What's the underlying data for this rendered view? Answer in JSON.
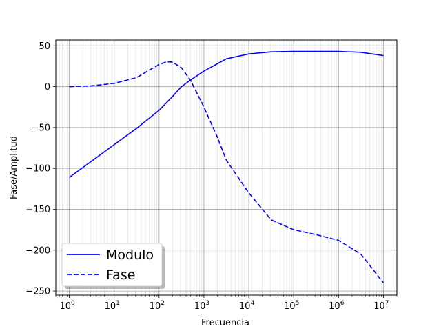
{
  "chart_data": {
    "type": "line",
    "title": "",
    "xlabel": "Frecuencia",
    "ylabel": "Fase/Amplitud",
    "xscale": "log",
    "xlim": [
      0.5,
      20000000
    ],
    "ylim": [
      -255,
      57
    ],
    "x_ticks": [
      {
        "value": 1,
        "base": "10",
        "exp": "0"
      },
      {
        "value": 10,
        "base": "10",
        "exp": "1"
      },
      {
        "value": 100,
        "base": "10",
        "exp": "2"
      },
      {
        "value": 1000,
        "base": "10",
        "exp": "3"
      },
      {
        "value": 10000,
        "base": "10",
        "exp": "4"
      },
      {
        "value": 100000,
        "base": "10",
        "exp": "5"
      },
      {
        "value": 1000000,
        "base": "10",
        "exp": "6"
      },
      {
        "value": 10000000,
        "base": "10",
        "exp": "7"
      }
    ],
    "y_ticks": [
      {
        "value": 50,
        "label": "50"
      },
      {
        "value": 0,
        "label": "0"
      },
      {
        "value": -50,
        "label": "−50"
      },
      {
        "value": -100,
        "label": "−100"
      },
      {
        "value": -150,
        "label": "−150"
      },
      {
        "value": -200,
        "label": "−200"
      },
      {
        "value": -250,
        "label": "−250"
      }
    ],
    "grid": "major and minor",
    "legend_position": "lower-left",
    "series": [
      {
        "name": "Modulo",
        "color": "#0000ff",
        "style": "solid",
        "x": [
          1,
          3.16,
          10,
          31.6,
          100,
          200,
          316,
          500,
          1000,
          2000,
          3160,
          10000,
          31600,
          100000,
          316000,
          1000000,
          3160000,
          10000000
        ],
        "y": [
          -111,
          -91,
          -71,
          -51,
          -29,
          -12,
          0,
          8,
          19,
          28,
          34,
          40,
          42.5,
          43,
          43,
          43,
          42,
          38
        ]
      },
      {
        "name": "Fase",
        "color": "#0000ff",
        "style": "dashed",
        "x": [
          1,
          3.16,
          10,
          31.6,
          60,
          100,
          150,
          200,
          316,
          500,
          1000,
          2000,
          3160,
          10000,
          31600,
          100000,
          316000,
          1000000,
          3160000,
          10000000
        ],
        "y": [
          0,
          1,
          4,
          11,
          20,
          27,
          30.5,
          30,
          23,
          8,
          -25,
          -62,
          -90,
          -130,
          -163,
          -175,
          -181,
          -188,
          -205,
          -240
        ]
      }
    ]
  }
}
